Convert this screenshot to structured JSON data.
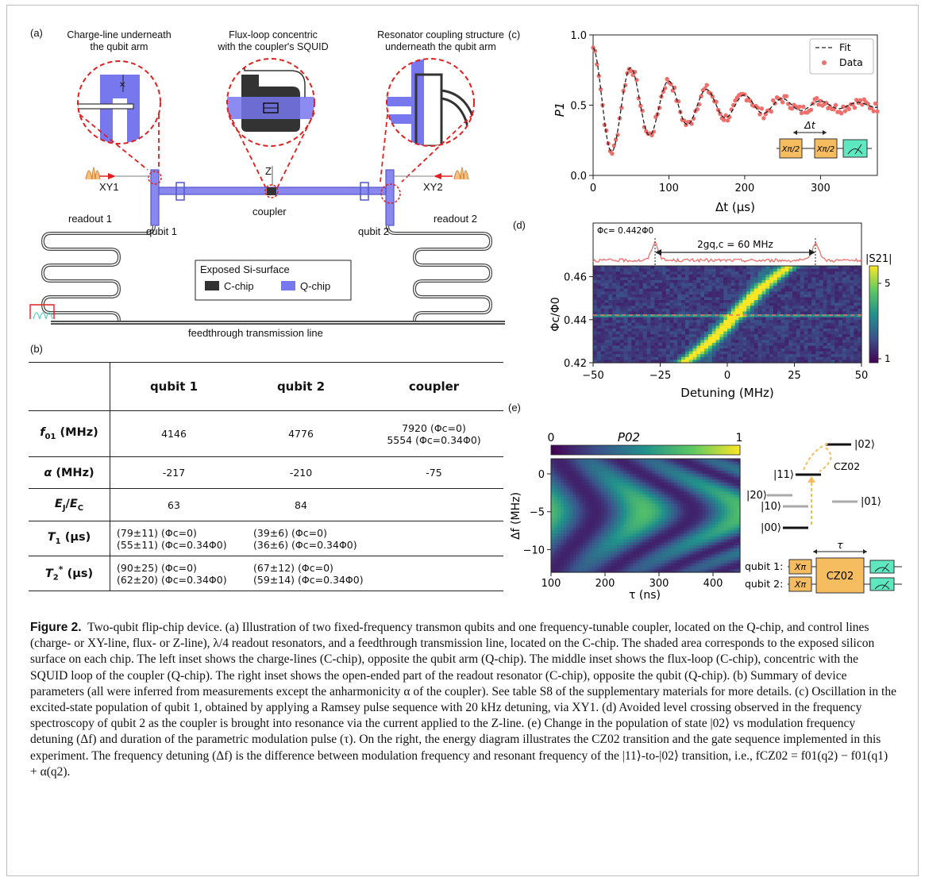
{
  "panel_labels": {
    "a": "(a)",
    "b": "(b)",
    "c": "(c)",
    "d": "(d)",
    "e": "(e)"
  },
  "panel_a": {
    "inset_left_title": [
      "Charge-line underneath",
      "the qubit arm"
    ],
    "inset_mid_title": [
      "Flux-loop concentric",
      "with the coupler's SQUID"
    ],
    "inset_right_title": [
      "Resonator coupling structure",
      "underneath the qubit arm"
    ],
    "xy1": "XY1",
    "xy2": "XY2",
    "z": "Z",
    "coupler": "coupler",
    "qubit1": "qubit 1",
    "qubit2": "qubit 2",
    "readout1": "readout 1",
    "readout2": "readout 2",
    "feedthrough": "feedthrough transmission line",
    "legend_title": "Exposed Si-surface",
    "legend_c": "C-chip",
    "legend_q": "Q-chip",
    "colors": {
      "qchip": "#7777ee",
      "cchip": "#333333",
      "dash": "#e02020"
    }
  },
  "table": {
    "headers": [
      "qubit 1",
      "qubit 2",
      "coupler"
    ],
    "rows": [
      {
        "label": "f01 (MHz)",
        "q1": "4146",
        "q2": "4776",
        "c": [
          "7920 (Φc=0)",
          "5554 (Φc=0.34Φ0)"
        ]
      },
      {
        "label": "α (MHz)",
        "q1": "-217",
        "q2": "-210",
        "c": [
          "-75"
        ]
      },
      {
        "label": "EJ/EC",
        "q1": "63",
        "q2": "84",
        "c": [
          ""
        ]
      },
      {
        "label": "T1 (μs)",
        "q1": [
          "(79±11) (Φc=0)",
          "(55±11) (Φc=0.34Φ0)"
        ],
        "q2": [
          "(39±6) (Φc=0)",
          "(36±6) (Φc=0.34Φ0)"
        ],
        "c": [
          ""
        ]
      },
      {
        "label": "T2* (μs)",
        "q1": [
          "(90±25) (Φc=0)",
          "(62±20) (Φc=0.34Φ0)"
        ],
        "q2": [
          "(67±12) (Φc=0)",
          "(59±14) (Φc=0.34Φ0)"
        ],
        "c": [
          ""
        ]
      }
    ]
  },
  "chart_data": [
    {
      "type": "scatter",
      "panel": "c",
      "xlabel": "Δt (μs)",
      "ylabel": "P1",
      "xlim": [
        0,
        375
      ],
      "ylim": [
        0.0,
        1.0
      ],
      "xticks": [
        "0",
        "100",
        "200",
        "300"
      ],
      "yticks": [
        "0.0",
        "0.5",
        "1.0"
      ],
      "legend_placement": "top-right",
      "series": [
        {
          "name": "Fit",
          "style": "dashed-line",
          "color": "#222222",
          "model": "damped-cosine",
          "params": {
            "offset": 0.5,
            "amplitude": 0.41,
            "period_us": 50,
            "decay_us": 115
          }
        },
        {
          "name": "Data",
          "style": "points",
          "color": "#ef6f6c",
          "x_step_us": 2.5,
          "x_range": [
            0,
            375
          ]
        }
      ],
      "pulse_label": "Δt",
      "gate_labels": [
        "Xπ/2",
        "Xπ/2"
      ]
    },
    {
      "type": "heatmap",
      "panel": "d",
      "xlabel": "Detuning (MHz)",
      "ylabel": "Φc/Φ0",
      "xlim": [
        -50,
        50
      ],
      "ylim": [
        0.42,
        0.465
      ],
      "xticks": [
        "−50",
        "−25",
        "0",
        "25",
        "50"
      ],
      "yticks": [
        "0.42",
        "0.44",
        "0.46"
      ],
      "colorbar_label": "|S21|",
      "colorbar_ticks": [
        "1",
        "5"
      ],
      "flux_label": "Φc= 0.442Φ0",
      "gap_label": "2gq,c = 60 MHz",
      "cut_flux": 0.442,
      "splitting_mhz": 60,
      "peak_positions_mhz": [
        -27,
        33
      ]
    },
    {
      "type": "heatmap",
      "panel": "e",
      "xlabel": "τ (ns)",
      "ylabel": "Δf (MHz)",
      "xlim": [
        100,
        450
      ],
      "ylim": [
        -13,
        2
      ],
      "xticks": [
        "100",
        "200",
        "300",
        "400"
      ],
      "yticks": [
        "0",
        "−5",
        "−10"
      ],
      "colorbar_label": "P02",
      "colorbar_ticks": [
        "0",
        "1"
      ],
      "colorbar_placement": "top"
    }
  ],
  "energy_diagram": {
    "levels": [
      "|02⟩",
      "|11⟩",
      "|20⟩",
      "|10⟩",
      "|01⟩",
      "|00⟩"
    ],
    "transition": "CZ02",
    "seq_q1": "qubit 1:",
    "seq_q2": "qubit 2:",
    "gate_x": "Xπ",
    "gate_cz": "CZ02",
    "tau": "τ"
  },
  "caption": {
    "title": "Figure 2.",
    "text": "Two-qubit flip-chip device. (a) Illustration of two fixed-frequency transmon qubits and one frequency-tunable coupler, located on the Q-chip, and control lines (charge- or XY-line, flux- or Z-line), λ/4 readout resonators, and a feedthrough transmission line, located on the C-chip. The shaded area corresponds to the exposed silicon surface on each chip. The left inset shows the charge-lines (C-chip), opposite the qubit arm (Q-chip). The middle inset shows the flux-loop (C-chip), concentric with the SQUID loop of the coupler (Q-chip). The right inset shows the open-ended part of the readout resonator (C-chip), opposite the qubit (Q-chip). (b) Summary of device parameters (all were inferred from measurements except the anharmonicity α of the coupler). See table S8 of the supplementary materials for more details. (c) Oscillation in the excited-state population of qubit 1, obtained by applying a Ramsey pulse sequence with 20 kHz detuning, via XY1. (d) Avoided level crossing observed in the frequency spectroscopy of qubit 2 as the coupler is brought into resonance via the current applied to the Z-line. (e) Change in the population of state |02⟩ vs modulation frequency detuning (Δf) and duration of the parametric modulation pulse (τ). On the right, the energy diagram illustrates the CZ02 transition and the gate sequence implemented in this experiment. The frequency detuning (Δf) is the difference between modulation frequency and resonant frequency of the |11⟩-to-|02⟩ transition, i.e., fCZ02 = f01(q2) − f01(q1) + α(q2)."
  }
}
